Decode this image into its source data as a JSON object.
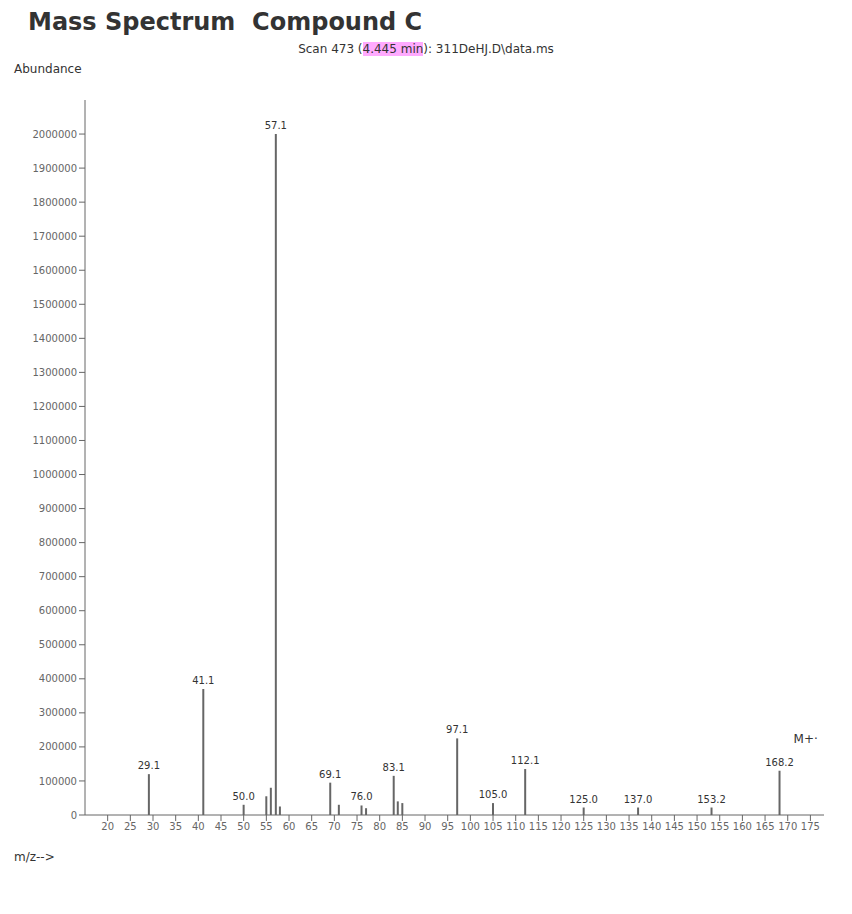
{
  "chart_data": {
    "type": "bar",
    "title": "Mass Spectrum  Compound C",
    "subtitle": [
      {
        "text": "Scan 473 ("
      },
      {
        "text": "4.445 min",
        "highlight": "#ffaaff"
      },
      {
        "text": "): 311DeHJ.D\\data.ms"
      }
    ],
    "xlabel": "m/z-->",
    "ylabel": "Abundance",
    "x": [
      29.1,
      41.1,
      50.0,
      57.1,
      55.0,
      56.0,
      58.0,
      69.1,
      71.0,
      76.0,
      77.0,
      83.1,
      84.0,
      85.0,
      97.1,
      105.0,
      112.1,
      125.0,
      137.0,
      153.2,
      168.2
    ],
    "values": [
      120000,
      370000,
      30000,
      2000000,
      55000,
      80000,
      25000,
      95000,
      30000,
      28000,
      20000,
      115000,
      40000,
      35000,
      225000,
      35000,
      135000,
      22000,
      22000,
      22000,
      130000
    ],
    "labels": [
      "29.1",
      "41.1",
      "50.0",
      "57.1",
      null,
      null,
      null,
      "69.1",
      null,
      "76.0",
      null,
      "83.1",
      null,
      null,
      "97.1",
      "105.0",
      "112.1",
      "125.0",
      "137.0",
      "153.2",
      "168.2"
    ],
    "annotations": [
      {
        "text": "M+·",
        "x": 168.2,
        "y": 130000
      }
    ],
    "color": "#666666",
    "xlim": [
      15,
      178
    ],
    "xticks": [
      20,
      25,
      30,
      35,
      40,
      45,
      50,
      55,
      60,
      65,
      70,
      75,
      80,
      85,
      90,
      95,
      100,
      105,
      110,
      115,
      120,
      125,
      130,
      135,
      140,
      145,
      150,
      155,
      160,
      165,
      170,
      175
    ],
    "ylim": [
      0,
      2100000
    ],
    "yticks": [
      0,
      100000,
      200000,
      300000,
      400000,
      500000,
      600000,
      700000,
      800000,
      900000,
      1000000,
      1100000,
      1200000,
      1300000,
      1400000,
      1500000,
      1600000,
      1700000,
      1800000,
      1900000,
      2000000
    ],
    "grid": false
  }
}
